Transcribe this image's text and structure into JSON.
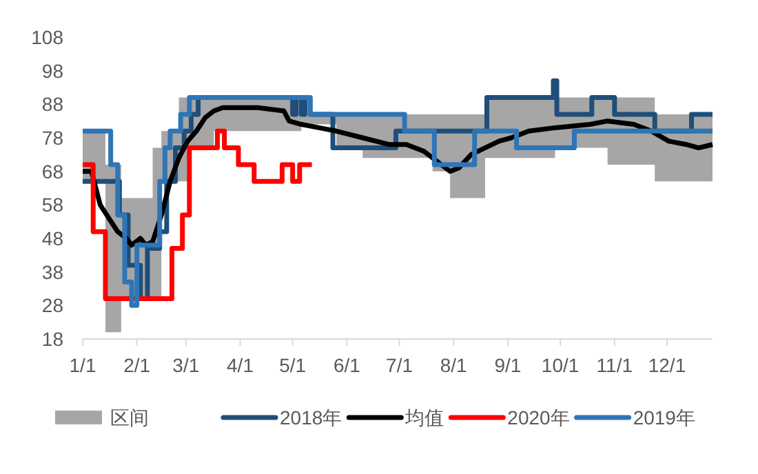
{
  "chart_data": {
    "type": "step",
    "xlim": [
      "--01-01",
      "--12-27"
    ],
    "ylim": [
      18,
      108
    ],
    "yticks": [
      18,
      28,
      38,
      48,
      58,
      68,
      78,
      88,
      98,
      108
    ],
    "xticks": [
      {
        "value": "--01-01",
        "label": "1/1"
      },
      {
        "value": "--02-01",
        "label": "2/1"
      },
      {
        "value": "--03-01",
        "label": "3/1"
      },
      {
        "value": "--04-01",
        "label": "4/1"
      },
      {
        "value": "--05-01",
        "label": "5/1"
      },
      {
        "value": "--06-01",
        "label": "6/1"
      },
      {
        "value": "--07-01",
        "label": "7/1"
      },
      {
        "value": "--08-01",
        "label": "8/1"
      },
      {
        "value": "--09-01",
        "label": "9/1"
      },
      {
        "value": "--10-01",
        "label": "10/1"
      },
      {
        "value": "--11-01",
        "label": "11/1"
      },
      {
        "value": "--12-01",
        "label": "12/1"
      }
    ],
    "legend": "bottom",
    "series": [
      {
        "name": "区间",
        "type": "area",
        "color": "#a6a6a6",
        "x": [
          "--01-01",
          "--01-14",
          "--01-23",
          "--02-10",
          "--02-15",
          "--02-25",
          "--03-04",
          "--03-17",
          "--04-06",
          "--04-26",
          "--05-06",
          "--05-26",
          "--06-10",
          "--07-20",
          "--07-30",
          "--08-19",
          "--09-03",
          "--09-28",
          "--10-28",
          "--11-24",
          "--12-12",
          "--12-27"
        ],
        "values": [
          null,
          null,
          null,
          null,
          null,
          null,
          null,
          null,
          null,
          null,
          null,
          null,
          null,
          null,
          null,
          null,
          null,
          null,
          null,
          null,
          null,
          null
        ],
        "lower": [
          65,
          20,
          30,
          30,
          65,
          65,
          75,
          80,
          80,
          80,
          82,
          75,
          72,
          68,
          60,
          72,
          72,
          75,
          70,
          65,
          65,
          65
        ],
        "upper": [
          80,
          70,
          60,
          75,
          80,
          90,
          90,
          90,
          90,
          90,
          85,
          85,
          85,
          85,
          85,
          90,
          90,
          90,
          90,
          85,
          85,
          85
        ]
      },
      {
        "name": "2018年",
        "color": "#1f4e79",
        "x": [
          "--01-01",
          "--01-22",
          "--01-27",
          "--02-03",
          "--02-07",
          "--02-14",
          "--02-18",
          "--02-23",
          "--02-28",
          "--03-04",
          "--03-08",
          "--05-01",
          "--05-03",
          "--05-06",
          "--05-08",
          "--05-11",
          "--05-24",
          "--06-29",
          "--08-20",
          "--09-27",
          "--09-29",
          "--10-19",
          "--11-01",
          "--11-24",
          "--12-15",
          "--12-27"
        ],
        "values": [
          65,
          55,
          40,
          30,
          45,
          50,
          65,
          75,
          80,
          85,
          90,
          85,
          90,
          85,
          90,
          85,
          75,
          80,
          90,
          95,
          85,
          90,
          85,
          80,
          85,
          85
        ]
      },
      {
        "name": "均值",
        "type": "line",
        "color": "#000000",
        "x": [
          "--01-01",
          "--01-06",
          "--01-11",
          "--01-16",
          "--01-21",
          "--01-26",
          "--01-29",
          "--02-03",
          "--02-06",
          "--02-10",
          "--02-15",
          "--02-20",
          "--02-25",
          "--03-02",
          "--03-07",
          "--03-12",
          "--03-17",
          "--03-22",
          "--04-11",
          "--04-26",
          "--04-29",
          "--05-06",
          "--05-16",
          "--05-26",
          "--06-10",
          "--06-25",
          "--07-05",
          "--07-15",
          "--07-25",
          "--07-30",
          "--08-04",
          "--08-11",
          "--08-19",
          "--08-27",
          "--09-03",
          "--09-13",
          "--09-28",
          "--10-18",
          "--10-28",
          "--11-12",
          "--11-22",
          "--12-02",
          "--12-12",
          "--12-19",
          "--12-27"
        ],
        "values": [
          68,
          68,
          58,
          54,
          50,
          48,
          46,
          48,
          46,
          47,
          55,
          65,
          72,
          77,
          80,
          84,
          86,
          87,
          87,
          86,
          83,
          82,
          81,
          80,
          78,
          76,
          76,
          74,
          70,
          68,
          69,
          73,
          75,
          77,
          78,
          80,
          81,
          82,
          83,
          82,
          80,
          77,
          76,
          75,
          76
        ]
      },
      {
        "name": "2020年",
        "color": "#ff0000",
        "x": [
          "--01-01",
          "--01-07",
          "--01-14",
          "--02-21",
          "--02-27",
          "--03-03",
          "--03-19",
          "--03-23",
          "--03-31",
          "--04-09",
          "--04-25",
          "--05-01",
          "--05-05",
          "--05-12"
        ],
        "values": [
          70,
          50,
          30,
          45,
          55,
          75,
          80,
          75,
          70,
          65,
          70,
          65,
          70,
          70
        ]
      },
      {
        "name": "2019年",
        "color": "#2e75b6",
        "x": [
          "--01-01",
          "--01-17",
          "--01-21",
          "--01-25",
          "--01-29",
          "--02-01",
          "--02-11",
          "--02-14",
          "--02-17",
          "--02-20",
          "--02-26",
          "--03-03",
          "--05-11",
          "--07-04",
          "--07-21",
          "--08-13",
          "--09-06",
          "--10-09",
          "--12-27"
        ],
        "values": [
          80,
          70,
          55,
          35,
          28,
          46,
          46,
          65,
          75,
          80,
          85,
          90,
          85,
          80,
          70,
          80,
          75,
          80,
          80
        ]
      }
    ]
  }
}
